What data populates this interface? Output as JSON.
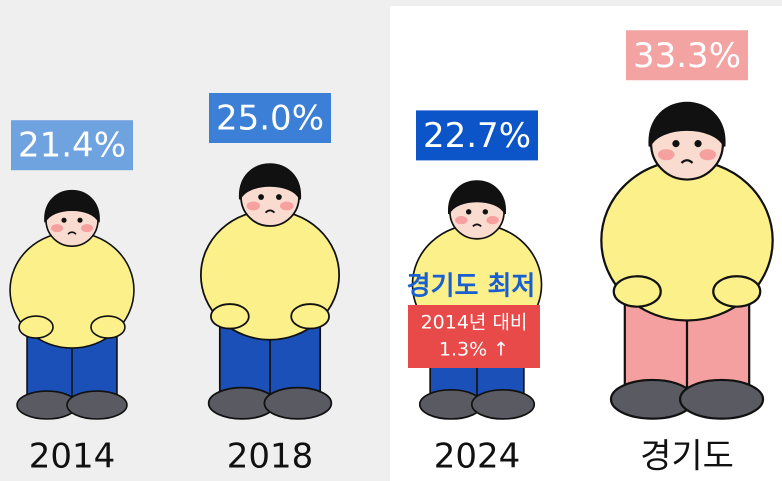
{
  "chart_data": {
    "type": "pictogram",
    "categories": [
      "2014",
      "2018",
      "2024",
      "경기도"
    ],
    "values": [
      21.4,
      25.0,
      22.7,
      33.3
    ],
    "value_labels": [
      "21.4%",
      "25.0%",
      "22.7%",
      "33.3%"
    ],
    "label_colors": [
      "#6fa3df",
      "#3b80d6",
      "#0b55c8",
      "#f4a3a3"
    ],
    "colors": [
      "#1a50b8",
      "#1a50b8",
      "#1a50b8",
      "#f4a0a0"
    ],
    "annotation": {
      "title": "경기도 최저",
      "lines": [
        "2014년 대비",
        "1.3% ↑"
      ]
    }
  }
}
